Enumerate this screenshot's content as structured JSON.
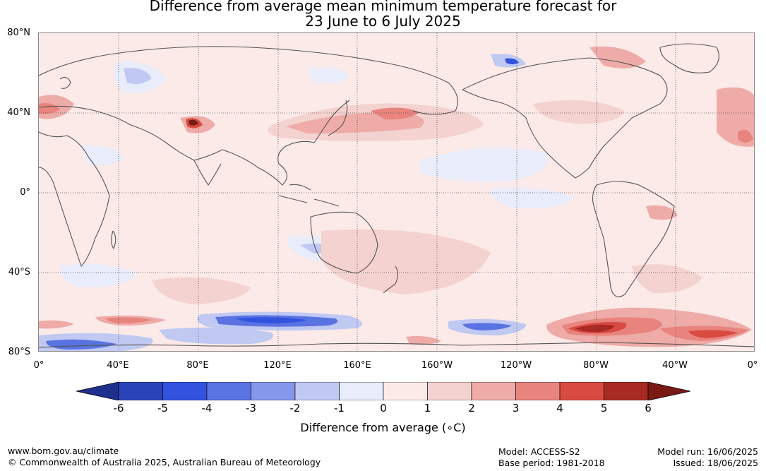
{
  "title": {
    "line1": "Difference from average mean minimum temperature forecast for",
    "line2": "23 June to 6 July 2025"
  },
  "lat_labels": [
    "80°N",
    "40°N",
    "0°",
    "40°S",
    "80°S"
  ],
  "lon_labels": [
    "0°",
    "40°E",
    "80°E",
    "120°E",
    "160°E",
    "160°W",
    "120°W",
    "80°W",
    "40°W",
    "0°"
  ],
  "colorbar": {
    "ticks": [
      "-6",
      "-5",
      "-4",
      "-3",
      "-2",
      "-1",
      "0",
      "1",
      "2",
      "3",
      "4",
      "5",
      "6"
    ],
    "colors": [
      "#1f2f8e",
      "#2a43b8",
      "#3352e0",
      "#5a73e2",
      "#8497ea",
      "#bfc9f2",
      "#e8ecfb",
      "#fbeae8",
      "#f4d2cf",
      "#eeaba7",
      "#e8837d",
      "#d94a40",
      "#a82a22",
      "#7a1a14"
    ],
    "label": "Difference from average (∘C)"
  },
  "footer": {
    "website": "www.bom.gov.au/climate",
    "copyright": "© Commonwealth of Australia 2025, Australian Bureau of Meteorology",
    "model": "Model: ACCESS-S2",
    "base_period": "Base period: 1981-2018",
    "model_run": "Model run: 16/06/2025",
    "issued": "Issued: 18/06/2025"
  }
}
